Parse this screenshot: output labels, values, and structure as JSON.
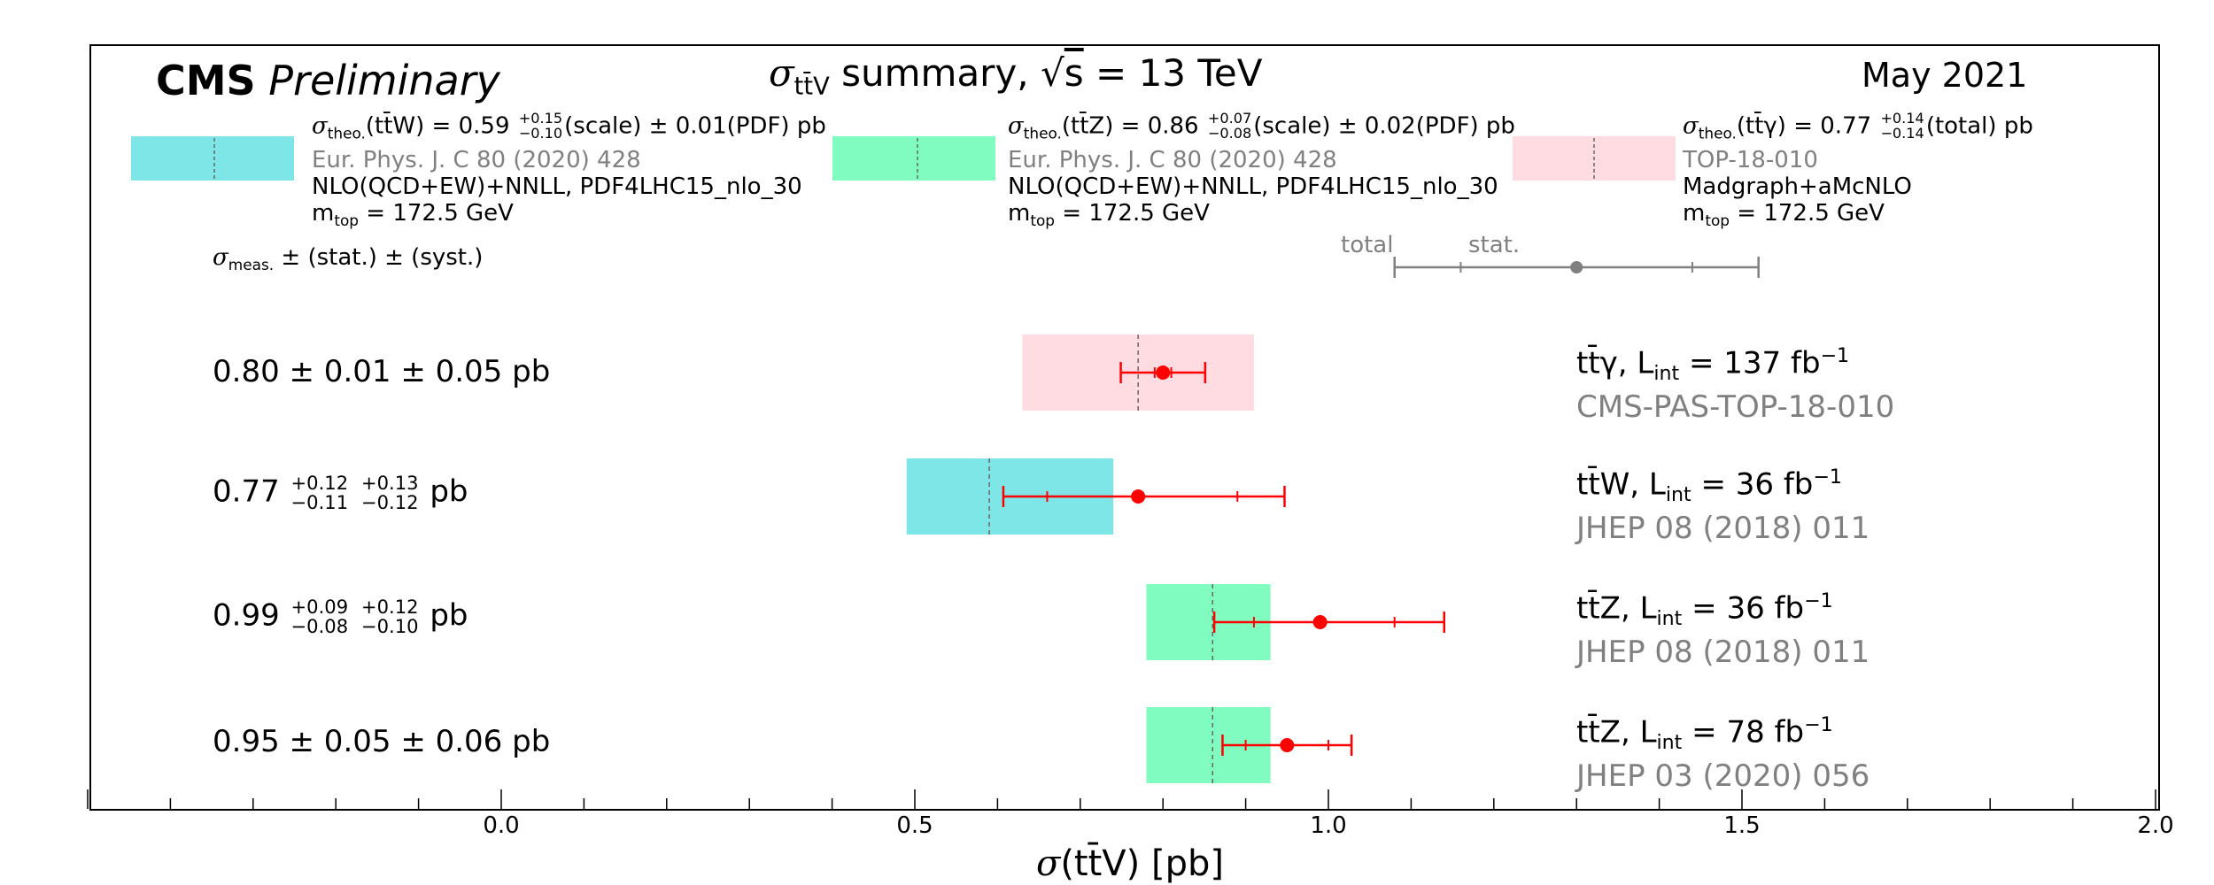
{
  "header": {
    "experiment": "CMS",
    "status": "Preliminary",
    "title_sigma": "σ",
    "title_sub": "tt̄V",
    "title_rest": " summary, ",
    "title_sqrt": "√",
    "title_s": "s",
    "title_energy": " = 13 TeV",
    "date": "May 2021"
  },
  "theory": [
    {
      "process": "tt̄W",
      "prefix": "σ",
      "prefix_sub": "theo.",
      "label_open": "(tt̄W) = 0.59 ",
      "err_up": "+0.15",
      "err_down": "−0.10",
      "label_close": "(scale) ± 0.01(PDF) pb",
      "reference": "Eur. Phys. J. C 80 (2020) 428",
      "method": "NLO(QCD+EW)+NNLL, PDF4LHC15_nlo_30",
      "mtop_prefix": "m",
      "mtop_sub": "top",
      "mtop_value": " = 172.5 GeV",
      "color": "#7fe6e8"
    },
    {
      "process": "tt̄Z",
      "prefix": "σ",
      "prefix_sub": "theo.",
      "label_open": "(tt̄Z) = 0.86 ",
      "err_up": "+0.07",
      "err_down": "−0.08",
      "label_close": "(scale) ± 0.02(PDF) pb",
      "reference": "Eur. Phys. J. C 80 (2020) 428",
      "method": "NLO(QCD+EW)+NNLL, PDF4LHC15_nlo_30",
      "mtop_prefix": "m",
      "mtop_sub": "top",
      "mtop_value": " = 172.5 GeV",
      "color": "#80fcc0"
    },
    {
      "process": "tt̄γ",
      "prefix": "σ",
      "prefix_sub": "theo.",
      "label_open": "(tt̄γ) = 0.77 ",
      "err_up": "+0.14",
      "err_down": "−0.14",
      "label_close": "(total) pb",
      "reference": "TOP-18-010",
      "method": "Madgraph+aMcNLO",
      "mtop_prefix": "m",
      "mtop_sub": "top",
      "mtop_value": " = 172.5 GeV",
      "color": "#ffdbe2"
    }
  ],
  "legend": {
    "meas_prefix": "σ",
    "meas_sub": "meas.",
    "meas_rest": " ± (stat.) ± (syst.)",
    "total_label": "total",
    "stat_label": "stat."
  },
  "measurements": [
    {
      "result_value": "0.80",
      "result_sym": "0.80 ± 0.01 ± 0.05 pb",
      "process": "tt̄γ",
      "lumi_label": ", L",
      "lumi_sub": "int",
      "lumi_value": " = 137 fb",
      "lumi_exp": "−1",
      "reference": "CMS-PAS-TOP-18-010"
    },
    {
      "result_value": "0.77",
      "stat_up": "+0.12",
      "stat_down": "−0.11",
      "syst_up": "+0.13",
      "syst_down": "−0.12",
      "unit": "pb",
      "process": "tt̄W",
      "lumi_label": ", L",
      "lumi_sub": "int",
      "lumi_value": " = 36 fb",
      "lumi_exp": "−1",
      "reference": "JHEP 08 (2018) 011"
    },
    {
      "result_value": "0.99",
      "stat_up": "+0.09",
      "stat_down": "−0.08",
      "syst_up": "+0.12",
      "syst_down": "−0.10",
      "unit": "pb",
      "process": "tt̄Z",
      "lumi_label": ", L",
      "lumi_sub": "int",
      "lumi_value": " = 36 fb",
      "lumi_exp": "−1",
      "reference": "JHEP 08 (2018) 011"
    },
    {
      "result_value": "0.95",
      "result_sym": "0.95 ± 0.05 ± 0.06 pb",
      "process": "tt̄Z",
      "lumi_label": ", L",
      "lumi_sub": "int",
      "lumi_value": " = 78 fb",
      "lumi_exp": "−1",
      "reference": "JHEP 03 (2020) 056"
    }
  ],
  "axis": {
    "title_sigma": "σ",
    "title_rest": "(tt̄V) [pb]"
  },
  "chart_data": {
    "type": "scatter",
    "title": "σ tt̄V summary, √s = 13 TeV",
    "xlabel": "σ(tt̄V) [pb]",
    "ylabel": "",
    "xlim": [
      -0.5,
      2.0
    ],
    "xticks": [
      0.0,
      0.5,
      1.0,
      1.5,
      2.0
    ],
    "xtick_labels": [
      "0.0",
      "0.5",
      "1.0",
      "1.5",
      "2.0"
    ],
    "minor_step": 0.1,
    "legend_example": {
      "value": 1.3,
      "stat": 0.14,
      "total": 0.22
    },
    "points": [
      {
        "label": "tt̄γ",
        "value": 0.8,
        "stat_up": 0.01,
        "stat_down": 0.01,
        "total_up": 0.051,
        "total_down": 0.051,
        "theory": {
          "value": 0.77,
          "up": 0.14,
          "down": 0.14
        },
        "color": "#ffdbe2"
      },
      {
        "label": "tt̄W (36 fb-1)",
        "value": 0.77,
        "stat_up": 0.12,
        "stat_down": 0.11,
        "total_up": 0.177,
        "total_down": 0.163,
        "theory": {
          "value": 0.59,
          "up": 0.15,
          "down": 0.1
        },
        "color": "#7fe6e8"
      },
      {
        "label": "tt̄Z (36 fb-1)",
        "value": 0.99,
        "stat_up": 0.09,
        "stat_down": 0.08,
        "total_up": 0.15,
        "total_down": 0.128,
        "theory": {
          "value": 0.86,
          "up": 0.07,
          "down": 0.08
        },
        "color": "#80fcc0"
      },
      {
        "label": "tt̄Z (78 fb-1)",
        "value": 0.95,
        "stat_up": 0.05,
        "stat_down": 0.05,
        "total_up": 0.078,
        "total_down": 0.078,
        "theory": {
          "value": 0.86,
          "up": 0.07,
          "down": 0.08
        },
        "color": "#80fcc0"
      }
    ],
    "marker_color": "#ff0000",
    "legend_color": "#808080"
  }
}
